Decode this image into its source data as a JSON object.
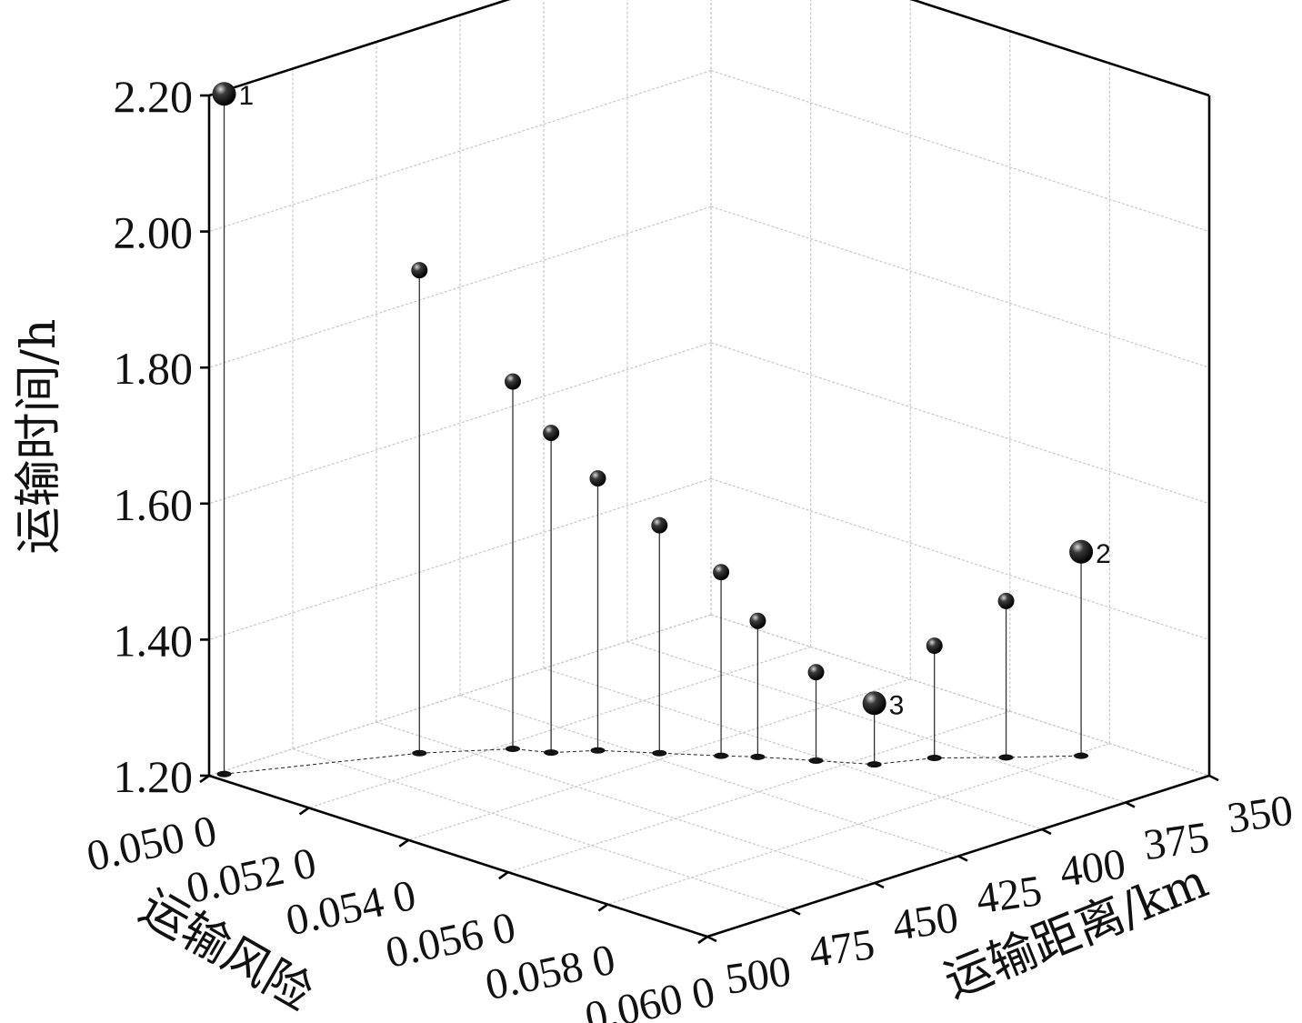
{
  "chart_data": {
    "type": "scatter",
    "title": "",
    "zlabel": "运输时间/h",
    "xlabel": "运输风险",
    "ylabel": "运输距离/km",
    "x_ticks": [
      "0.050 0",
      "0.052 0",
      "0.054 0",
      "0.056 0",
      "0.058 0",
      "0.060 0"
    ],
    "y_ticks": [
      "350",
      "375",
      "400",
      "425",
      "450",
      "475",
      "500"
    ],
    "z_ticks": [
      "1.20",
      "1.40",
      "1.60",
      "1.80",
      "2.00",
      "2.20"
    ],
    "xlim": [
      0.05,
      0.06
    ],
    "ylim": [
      350,
      500
    ],
    "zlim": [
      1.2,
      2.2
    ],
    "grid": true,
    "marker": "sphere",
    "drop_lines": true,
    "points": [
      {
        "risk": 0.0501,
        "distance": 497,
        "time": 2.2,
        "label": "1"
      },
      {
        "risk": 0.0514,
        "distance": 458,
        "time": 1.91,
        "label": ""
      },
      {
        "risk": 0.0522,
        "distance": 442,
        "time": 1.74,
        "label": ""
      },
      {
        "risk": 0.0527,
        "distance": 438,
        "time": 1.67,
        "label": ""
      },
      {
        "risk": 0.0531,
        "distance": 430,
        "time": 1.6,
        "label": ""
      },
      {
        "risk": 0.0538,
        "distance": 422,
        "time": 1.535,
        "label": ""
      },
      {
        "risk": 0.0545,
        "distance": 414,
        "time": 1.47,
        "label": ""
      },
      {
        "risk": 0.0549,
        "distance": 409,
        "time": 1.4,
        "label": ""
      },
      {
        "risk": 0.0556,
        "distance": 402,
        "time": 1.33,
        "label": ""
      },
      {
        "risk": 0.0563,
        "distance": 395,
        "time": 1.29,
        "label": "3"
      },
      {
        "risk": 0.0567,
        "distance": 383,
        "time": 1.365,
        "label": ""
      },
      {
        "risk": 0.0574,
        "distance": 372,
        "time": 1.43,
        "label": ""
      },
      {
        "risk": 0.0581,
        "distance": 360,
        "time": 1.5,
        "label": "2"
      }
    ]
  }
}
